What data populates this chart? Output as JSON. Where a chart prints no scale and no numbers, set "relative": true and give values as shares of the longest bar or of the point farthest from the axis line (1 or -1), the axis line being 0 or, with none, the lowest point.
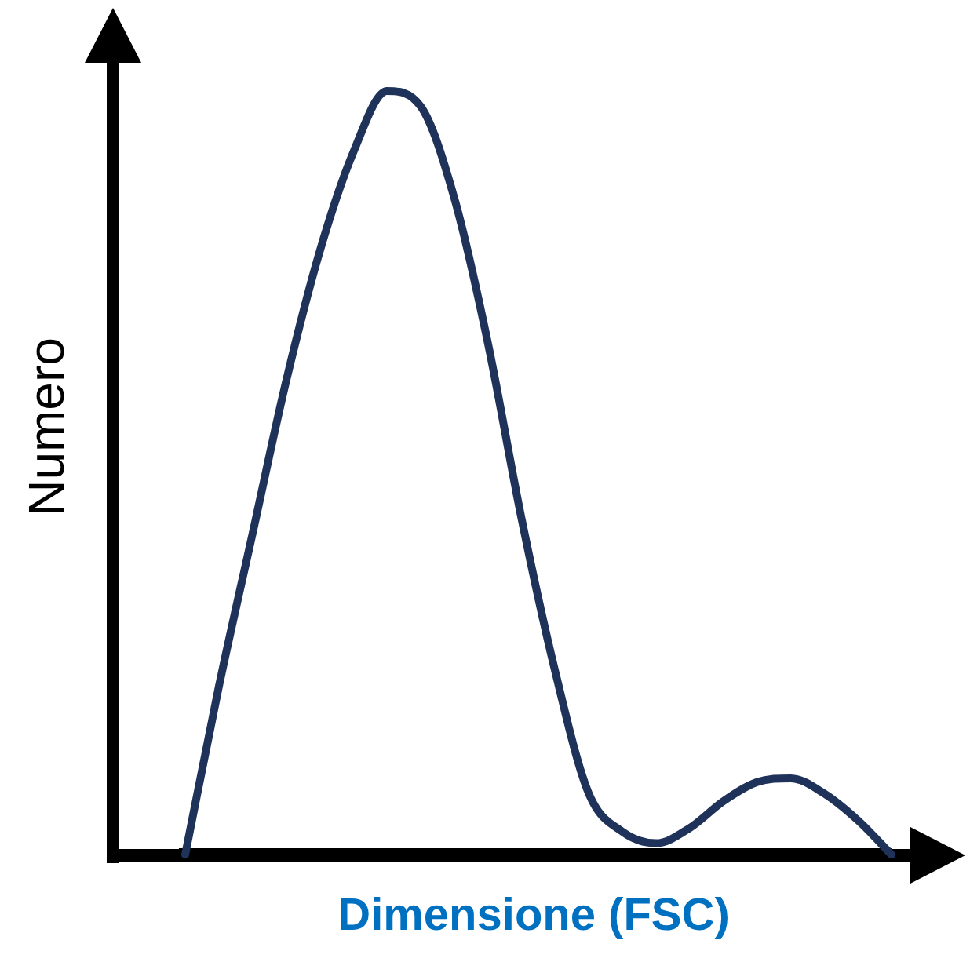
{
  "chart_data": {
    "type": "line",
    "xlabel": "Dimensione (FSC)",
    "ylabel": "Numero",
    "relative": true,
    "categories": [
      null,
      null,
      null,
      null,
      null,
      null,
      null,
      null,
      null,
      null,
      null,
      null,
      null,
      null,
      null,
      null,
      null,
      null,
      null,
      null,
      null,
      null
    ],
    "values": [
      0,
      0.22,
      0.42,
      0.62,
      0.79,
      0.92,
      1,
      0.98,
      0.86,
      0.67,
      0.44,
      0.24,
      0.08,
      0.03,
      0.015,
      0.035,
      0.07,
      0.095,
      0.1,
      0.08,
      0.045,
      0
    ],
    "color": "#1f3259"
  }
}
